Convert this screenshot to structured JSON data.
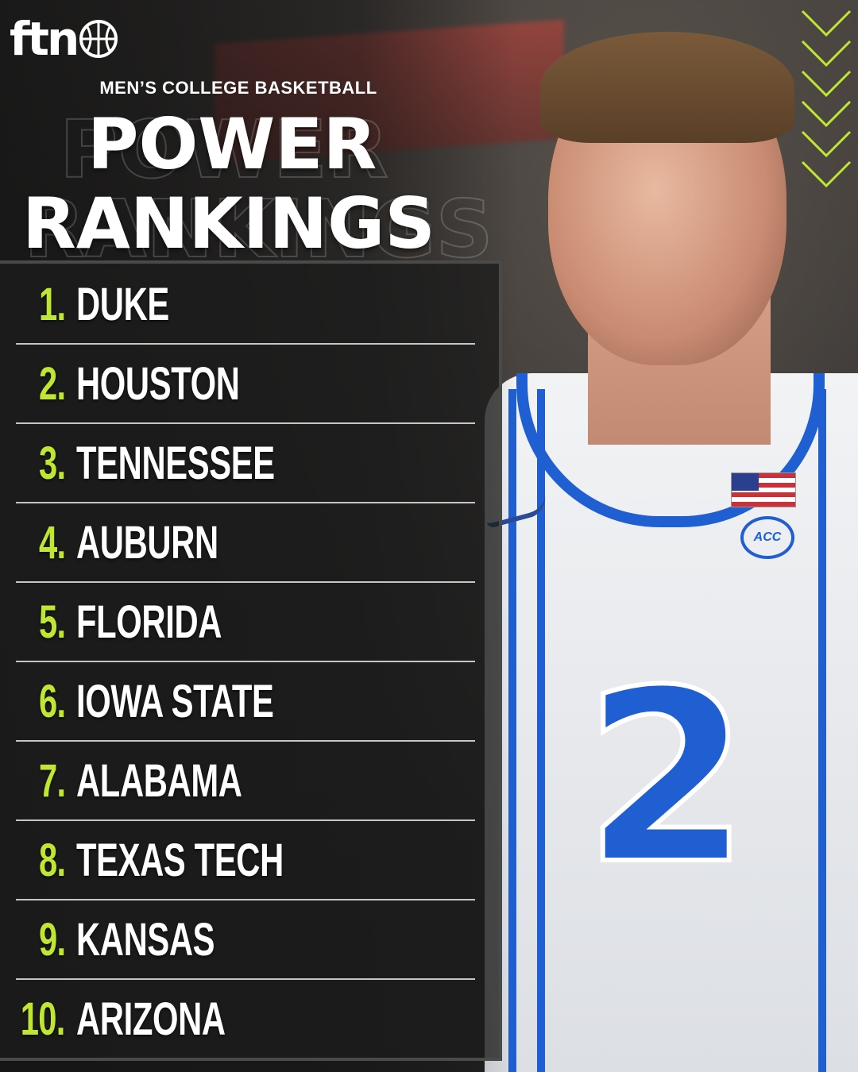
{
  "brand": {
    "logo_text": "ftn",
    "logo_icon": "basketball-icon",
    "accent_color": "#bfe630"
  },
  "header": {
    "subtitle": "MEN’S COLLEGE BASKETBALL",
    "title_line_1": "POWER",
    "title_line_2": "RANKINGS"
  },
  "background": {
    "jersey_number": "2",
    "patch_text": "ACC"
  },
  "rankings": [
    {
      "rank": "1.",
      "team": "DUKE"
    },
    {
      "rank": "2.",
      "team": "HOUSTON"
    },
    {
      "rank": "3.",
      "team": "TENNESSEE"
    },
    {
      "rank": "4.",
      "team": "AUBURN"
    },
    {
      "rank": "5.",
      "team": "FLORIDA"
    },
    {
      "rank": "6.",
      "team": "IOWA STATE"
    },
    {
      "rank": "7.",
      "team": "ALABAMA"
    },
    {
      "rank": "8.",
      "team": "TEXAS TECH"
    },
    {
      "rank": "9.",
      "team": "KANSAS"
    },
    {
      "rank": "10.",
      "team": "ARIZONA"
    }
  ]
}
